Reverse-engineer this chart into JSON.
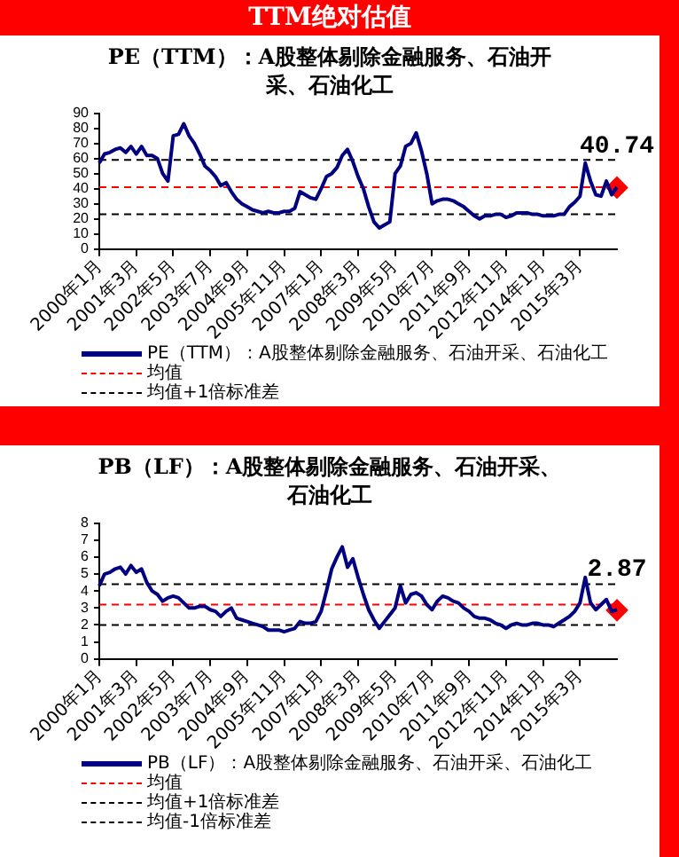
{
  "chart_data": [
    {
      "type": "other",
      "title": "TTM绝对估值"
    },
    {
      "type": "line",
      "title": "PE（TTM）：A股整体剔除金融服务、石油开采、石油化工",
      "legend": "bottom",
      "marker": "none",
      "ylim": [
        0,
        90
      ],
      "yticks": [
        0,
        10,
        20,
        30,
        40,
        50,
        60,
        70,
        80,
        90
      ],
      "categories": [
        "2000年1月",
        null,
        null,
        null,
        null,
        null,
        null,
        "2001年3月",
        null,
        null,
        null,
        null,
        null,
        null,
        "2002年5月",
        null,
        null,
        null,
        null,
        null,
        null,
        "2003年7月",
        null,
        null,
        null,
        null,
        null,
        null,
        "2004年9月",
        null,
        null,
        null,
        null,
        null,
        null,
        "2005年11月",
        null,
        null,
        null,
        null,
        null,
        null,
        "2007年1月",
        null,
        null,
        null,
        null,
        null,
        null,
        "2008年3月",
        null,
        null,
        null,
        null,
        null,
        null,
        "2009年5月",
        null,
        null,
        null,
        null,
        null,
        null,
        "2010年7月",
        null,
        null,
        null,
        null,
        null,
        null,
        "2011年9月",
        null,
        null,
        null,
        null,
        null,
        null,
        "2012年11月",
        null,
        null,
        null,
        null,
        null,
        null,
        "2014年1月",
        null,
        null,
        null,
        null,
        null,
        null,
        "2015年3月",
        null,
        null,
        null,
        null,
        null,
        null,
        null
      ],
      "series": [
        {
          "name": "PE（TTM）：A股整体剔除金融服务、石油开采、石油化工",
          "color": "#000080",
          "values": [
            57,
            63,
            64,
            66,
            67,
            64,
            68,
            63,
            68,
            62,
            62,
            60,
            50,
            45,
            75,
            76,
            83,
            75,
            70,
            63,
            55,
            52,
            48,
            42,
            44,
            38,
            33,
            30,
            28,
            26,
            25,
            24,
            25,
            24,
            24,
            25,
            25,
            27,
            38,
            36,
            34,
            33,
            40,
            48,
            50,
            54,
            62,
            66,
            58,
            48,
            40,
            28,
            18,
            14,
            16,
            18,
            50,
            55,
            68,
            70,
            77,
            65,
            50,
            30,
            32,
            33,
            33,
            32,
            30,
            28,
            25,
            22,
            20,
            22,
            22,
            23,
            23,
            21,
            22,
            24,
            24,
            24,
            23,
            23,
            22,
            22,
            22,
            23,
            23,
            28,
            31,
            35,
            57,
            45,
            36,
            35,
            45,
            36,
            41
          ]
        },
        {
          "type": "scatter",
          "color": "#ff0000",
          "marker": "diamond",
          "values": [
            null,
            null,
            null,
            null,
            null,
            null,
            null,
            null,
            null,
            null,
            null,
            null,
            null,
            null,
            null,
            null,
            null,
            null,
            null,
            null,
            null,
            null,
            null,
            null,
            null,
            null,
            null,
            null,
            null,
            null,
            null,
            null,
            null,
            null,
            null,
            null,
            null,
            null,
            null,
            null,
            null,
            null,
            null,
            null,
            null,
            null,
            null,
            null,
            null,
            null,
            null,
            null,
            null,
            null,
            null,
            null,
            null,
            null,
            null,
            null,
            null,
            null,
            null,
            null,
            null,
            null,
            null,
            null,
            null,
            null,
            null,
            null,
            null,
            null,
            null,
            null,
            null,
            null,
            null,
            null,
            null,
            null,
            null,
            null,
            null,
            null,
            null,
            null,
            null,
            null,
            null,
            null,
            null,
            null,
            null,
            null,
            null,
            null,
            40.74
          ],
          "value_labels": [
            null,
            null,
            null,
            null,
            null,
            null,
            null,
            null,
            null,
            null,
            null,
            null,
            null,
            null,
            null,
            null,
            null,
            null,
            null,
            null,
            null,
            null,
            null,
            null,
            null,
            null,
            null,
            null,
            null,
            null,
            null,
            null,
            null,
            null,
            null,
            null,
            null,
            null,
            null,
            null,
            null,
            null,
            null,
            null,
            null,
            null,
            null,
            null,
            null,
            null,
            null,
            null,
            null,
            null,
            null,
            null,
            null,
            null,
            null,
            null,
            null,
            null,
            null,
            null,
            null,
            null,
            null,
            null,
            null,
            null,
            null,
            null,
            null,
            null,
            null,
            null,
            null,
            null,
            null,
            null,
            null,
            null,
            null,
            null,
            null,
            null,
            null,
            null,
            null,
            null,
            null,
            null,
            null,
            null,
            null,
            null,
            null,
            null,
            "40.74"
          ]
        }
      ],
      "ref_lines": [
        {
          "axis": "y",
          "value": 41,
          "label": "均值",
          "color": "#ff0000",
          "line_style": "dashed"
        },
        {
          "axis": "y",
          "value": 59,
          "label": "均值+1倍标准差",
          "color": "#000000",
          "line_style": "dashed"
        },
        {
          "axis": "y",
          "value": 23,
          "label": null,
          "color": "#000000",
          "line_style": "dashed"
        }
      ]
    },
    {
      "type": "line",
      "title": "PB（LF）：A股整体剔除金融服务、石油开采、石油化工",
      "legend": "bottom",
      "marker": "none",
      "ylim": [
        0,
        8
      ],
      "yticks": [
        0,
        1,
        2,
        3,
        4,
        5,
        6,
        7,
        8
      ],
      "categories": [
        "2000年1月",
        null,
        null,
        null,
        null,
        null,
        null,
        "2001年3月",
        null,
        null,
        null,
        null,
        null,
        null,
        "2002年5月",
        null,
        null,
        null,
        null,
        null,
        null,
        "2003年7月",
        null,
        null,
        null,
        null,
        null,
        null,
        "2004年9月",
        null,
        null,
        null,
        null,
        null,
        null,
        "2005年11月",
        null,
        null,
        null,
        null,
        null,
        null,
        "2007年1月",
        null,
        null,
        null,
        null,
        null,
        null,
        "2008年3月",
        null,
        null,
        null,
        null,
        null,
        null,
        "2009年5月",
        null,
        null,
        null,
        null,
        null,
        null,
        "2010年7月",
        null,
        null,
        null,
        null,
        null,
        null,
        "2011年9月",
        null,
        null,
        null,
        null,
        null,
        null,
        "2012年11月",
        null,
        null,
        null,
        null,
        null,
        null,
        "2014年1月",
        null,
        null,
        null,
        null,
        null,
        null,
        "2015年3月",
        null,
        null,
        null,
        null,
        null,
        null,
        null
      ],
      "series": [
        {
          "name": "PB（LF）：A股整体剔除金融服务、石油开采、石油化工",
          "color": "#000080",
          "values": [
            4.3,
            5.0,
            5.1,
            5.3,
            5.4,
            5.0,
            5.5,
            5.1,
            5.3,
            4.5,
            4.0,
            3.8,
            3.4,
            3.6,
            3.7,
            3.6,
            3.3,
            3.0,
            3.0,
            3.1,
            3.1,
            2.9,
            2.8,
            2.5,
            2.8,
            3.0,
            2.4,
            2.3,
            2.2,
            2.1,
            2.0,
            1.9,
            1.7,
            1.7,
            1.7,
            1.6,
            1.7,
            1.8,
            2.2,
            2.1,
            2.1,
            2.2,
            2.8,
            4.0,
            5.3,
            6.0,
            6.6,
            5.4,
            5.9,
            4.8,
            3.8,
            2.9,
            2.3,
            1.8,
            2.2,
            2.6,
            3.0,
            4.3,
            3.3,
            3.8,
            3.9,
            3.7,
            3.2,
            2.9,
            3.4,
            3.7,
            3.6,
            3.4,
            3.3,
            3.0,
            2.8,
            2.5,
            2.4,
            2.4,
            2.3,
            2.1,
            2.0,
            1.8,
            2.0,
            2.1,
            2.0,
            2.0,
            2.1,
            2.1,
            2.0,
            2.0,
            1.9,
            2.1,
            2.3,
            2.5,
            2.8,
            3.3,
            4.8,
            3.3,
            2.9,
            3.2,
            3.5,
            2.8,
            2.9
          ]
        },
        {
          "type": "scatter",
          "color": "#ff0000",
          "marker": "diamond",
          "values": [
            null,
            null,
            null,
            null,
            null,
            null,
            null,
            null,
            null,
            null,
            null,
            null,
            null,
            null,
            null,
            null,
            null,
            null,
            null,
            null,
            null,
            null,
            null,
            null,
            null,
            null,
            null,
            null,
            null,
            null,
            null,
            null,
            null,
            null,
            null,
            null,
            null,
            null,
            null,
            null,
            null,
            null,
            null,
            null,
            null,
            null,
            null,
            null,
            null,
            null,
            null,
            null,
            null,
            null,
            null,
            null,
            null,
            null,
            null,
            null,
            null,
            null,
            null,
            null,
            null,
            null,
            null,
            null,
            null,
            null,
            null,
            null,
            null,
            null,
            null,
            null,
            null,
            null,
            null,
            null,
            null,
            null,
            null,
            null,
            null,
            null,
            null,
            null,
            null,
            null,
            null,
            null,
            null,
            null,
            null,
            null,
            null,
            null,
            2.87
          ],
          "value_labels": [
            null,
            null,
            null,
            null,
            null,
            null,
            null,
            null,
            null,
            null,
            null,
            null,
            null,
            null,
            null,
            null,
            null,
            null,
            null,
            null,
            null,
            null,
            null,
            null,
            null,
            null,
            null,
            null,
            null,
            null,
            null,
            null,
            null,
            null,
            null,
            null,
            null,
            null,
            null,
            null,
            null,
            null,
            null,
            null,
            null,
            null,
            null,
            null,
            null,
            null,
            null,
            null,
            null,
            null,
            null,
            null,
            null,
            null,
            null,
            null,
            null,
            null,
            null,
            null,
            null,
            null,
            null,
            null,
            null,
            null,
            null,
            null,
            null,
            null,
            null,
            null,
            null,
            null,
            null,
            null,
            null,
            null,
            null,
            null,
            null,
            null,
            null,
            null,
            null,
            null,
            null,
            null,
            null,
            null,
            null,
            null,
            null,
            null,
            "2.87"
          ]
        }
      ],
      "ref_lines": [
        {
          "axis": "y",
          "value": 3.2,
          "label": "均值",
          "color": "#ff0000",
          "line_style": "dashed"
        },
        {
          "axis": "y",
          "value": 4.4,
          "label": "均值+1倍标准差",
          "color": "#000000",
          "line_style": "dashed"
        },
        {
          "axis": "y",
          "value": 2.0,
          "label": "均值-1倍标准差",
          "color": "#000000",
          "line_style": "dashed"
        }
      ]
    }
  ]
}
